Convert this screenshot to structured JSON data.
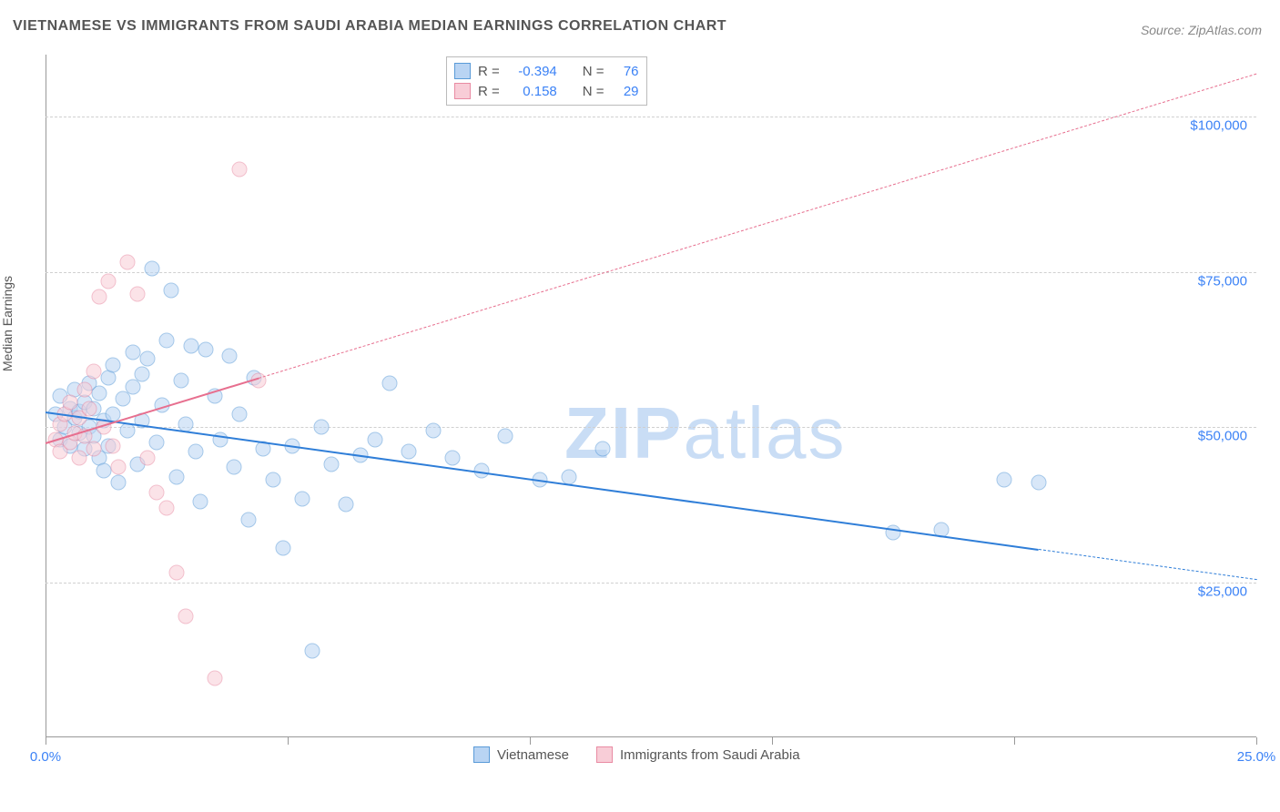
{
  "title": "VIETNAMESE VS IMMIGRANTS FROM SAUDI ARABIA MEDIAN EARNINGS CORRELATION CHART",
  "source": "Source: ZipAtlas.com",
  "y_axis_label": "Median Earnings",
  "watermark_bold": "ZIP",
  "watermark_light": "atlas",
  "chart": {
    "type": "scatter",
    "xlim": [
      0,
      25
    ],
    "ylim": [
      0,
      110000
    ],
    "x_tick_positions": [
      0,
      5,
      10,
      15,
      20,
      25
    ],
    "x_tick_labels_shown": {
      "0": "0.0%",
      "25": "25.0%"
    },
    "y_gridlines": [
      25000,
      50000,
      75000,
      100000
    ],
    "y_tick_labels": {
      "25000": "$25,000",
      "50000": "$50,000",
      "75000": "$75,000",
      "100000": "$100,000"
    },
    "grid_color": "#d0d0d0",
    "axis_color": "#999999",
    "background_color": "#ffffff",
    "label_color": "#3b82f6",
    "title_color": "#555555",
    "title_fontsize": 16,
    "tick_fontsize": 15,
    "point_radius": 8.5,
    "point_opacity": 0.55
  },
  "series": [
    {
      "name": "Vietnamese",
      "fill": "#b9d4f3",
      "stroke": "#5a9bd8",
      "line_color": "#2f7ed8",
      "R": "-0.394",
      "N": "76",
      "trend": {
        "x1": 0,
        "y1": 52500,
        "x2": 25,
        "y2": 25500,
        "solid_until_x": 20.5
      },
      "points": [
        [
          0.2,
          52000
        ],
        [
          0.3,
          48000
        ],
        [
          0.3,
          55000
        ],
        [
          0.4,
          50000
        ],
        [
          0.5,
          53000
        ],
        [
          0.5,
          47000
        ],
        [
          0.6,
          51500
        ],
        [
          0.6,
          56000
        ],
        [
          0.7,
          49000
        ],
        [
          0.7,
          52500
        ],
        [
          0.8,
          54000
        ],
        [
          0.8,
          46500
        ],
        [
          0.9,
          50000
        ],
        [
          0.9,
          57000
        ],
        [
          1.0,
          48500
        ],
        [
          1.0,
          53000
        ],
        [
          1.1,
          45000
        ],
        [
          1.1,
          55500
        ],
        [
          1.2,
          51000
        ],
        [
          1.2,
          43000
        ],
        [
          1.3,
          58000
        ],
        [
          1.3,
          47000
        ],
        [
          1.4,
          52000
        ],
        [
          1.4,
          60000
        ],
        [
          1.5,
          41000
        ],
        [
          1.6,
          54500
        ],
        [
          1.7,
          49500
        ],
        [
          1.8,
          62000
        ],
        [
          1.8,
          56500
        ],
        [
          1.9,
          44000
        ],
        [
          2.0,
          58500
        ],
        [
          2.0,
          51000
        ],
        [
          2.1,
          61000
        ],
        [
          2.2,
          75500
        ],
        [
          2.3,
          47500
        ],
        [
          2.4,
          53500
        ],
        [
          2.5,
          64000
        ],
        [
          2.6,
          72000
        ],
        [
          2.7,
          42000
        ],
        [
          2.8,
          57500
        ],
        [
          2.9,
          50500
        ],
        [
          3.0,
          63000
        ],
        [
          3.1,
          46000
        ],
        [
          3.2,
          38000
        ],
        [
          3.3,
          62500
        ],
        [
          3.5,
          55000
        ],
        [
          3.6,
          48000
        ],
        [
          3.8,
          61500
        ],
        [
          3.9,
          43500
        ],
        [
          4.0,
          52000
        ],
        [
          4.2,
          35000
        ],
        [
          4.3,
          58000
        ],
        [
          4.5,
          46500
        ],
        [
          4.7,
          41500
        ],
        [
          4.9,
          30500
        ],
        [
          5.1,
          47000
        ],
        [
          5.3,
          38500
        ],
        [
          5.5,
          14000
        ],
        [
          5.7,
          50000
        ],
        [
          5.9,
          44000
        ],
        [
          6.2,
          37500
        ],
        [
          6.5,
          45500
        ],
        [
          6.8,
          48000
        ],
        [
          7.1,
          57000
        ],
        [
          7.5,
          46000
        ],
        [
          8.0,
          49500
        ],
        [
          8.4,
          45000
        ],
        [
          9.0,
          43000
        ],
        [
          9.5,
          48500
        ],
        [
          10.2,
          41500
        ],
        [
          10.8,
          42000
        ],
        [
          11.5,
          46500
        ],
        [
          17.5,
          33000
        ],
        [
          18.5,
          33500
        ],
        [
          20.5,
          41000
        ],
        [
          19.8,
          41500
        ]
      ]
    },
    {
      "name": "Immigrants from Saudi Arabia",
      "fill": "#f8cdd7",
      "stroke": "#e98ba3",
      "line_color": "#e76f8f",
      "R": "0.158",
      "N": "29",
      "trend": {
        "x1": 0,
        "y1": 47500,
        "x2": 25,
        "y2": 107000,
        "solid_until_x": 4.4
      },
      "points": [
        [
          0.2,
          48000
        ],
        [
          0.3,
          50500
        ],
        [
          0.3,
          46000
        ],
        [
          0.4,
          52000
        ],
        [
          0.5,
          47500
        ],
        [
          0.5,
          54000
        ],
        [
          0.6,
          49000
        ],
        [
          0.7,
          51500
        ],
        [
          0.7,
          45000
        ],
        [
          0.8,
          56000
        ],
        [
          0.8,
          48500
        ],
        [
          0.9,
          53000
        ],
        [
          1.0,
          59000
        ],
        [
          1.0,
          46500
        ],
        [
          1.1,
          71000
        ],
        [
          1.2,
          50000
        ],
        [
          1.3,
          73500
        ],
        [
          1.4,
          47000
        ],
        [
          1.5,
          43500
        ],
        [
          1.7,
          76500
        ],
        [
          1.9,
          71500
        ],
        [
          2.1,
          45000
        ],
        [
          2.3,
          39500
        ],
        [
          2.5,
          37000
        ],
        [
          2.7,
          26500
        ],
        [
          2.9,
          19500
        ],
        [
          3.5,
          9500
        ],
        [
          4.0,
          91500
        ],
        [
          4.4,
          57500
        ]
      ]
    }
  ],
  "stats_box": {
    "r_label": "R =",
    "n_label": "N ="
  },
  "legend": {
    "series1_label": "Vietnamese",
    "series2_label": "Immigrants from Saudi Arabia"
  }
}
